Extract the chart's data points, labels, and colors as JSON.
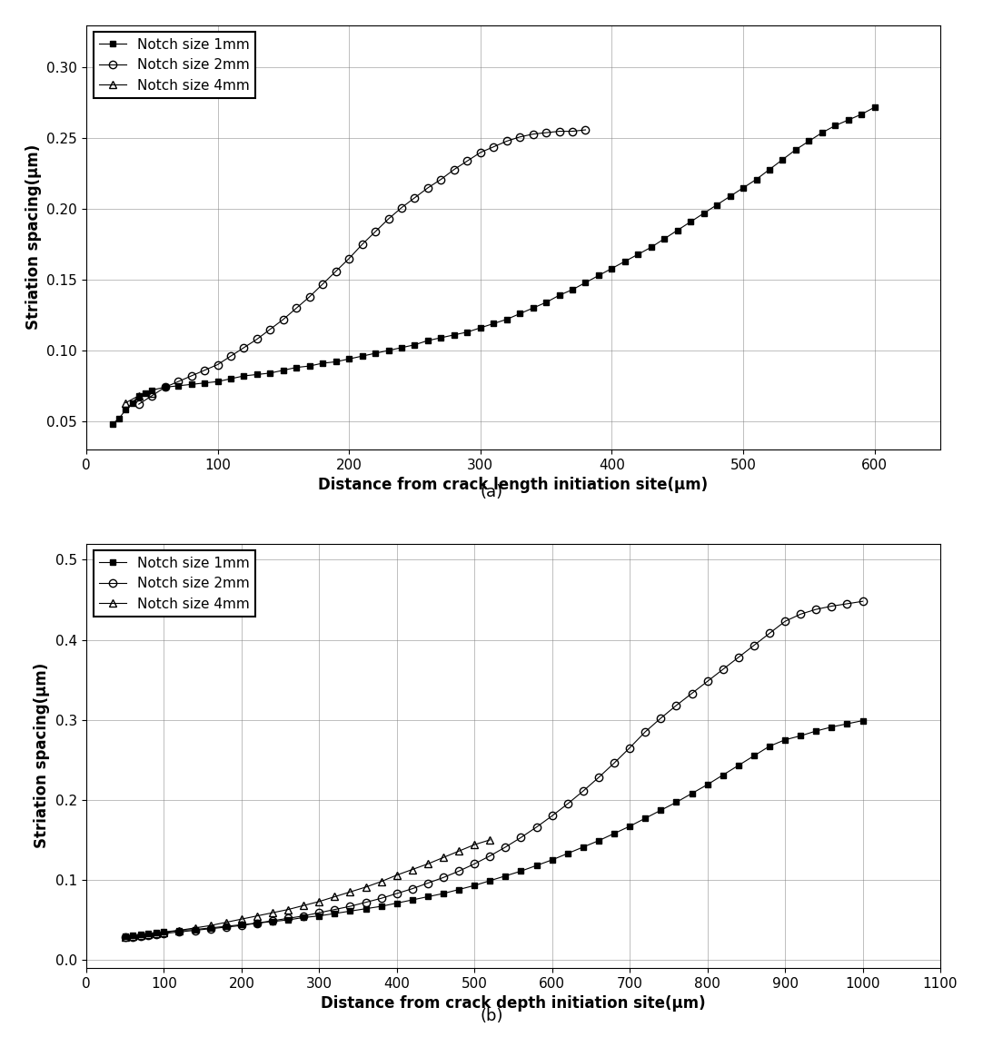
{
  "plot_a": {
    "title": "(a)",
    "xlabel": "Distance from crack length initiation site(μm)",
    "ylabel": "Striation spacing(μm)",
    "xlim": [
      0,
      650
    ],
    "ylim": [
      0.03,
      0.33
    ],
    "yticks": [
      0.05,
      0.1,
      0.15,
      0.2,
      0.25,
      0.3
    ],
    "xticks": [
      0,
      100,
      200,
      300,
      400,
      500,
      600
    ],
    "series": [
      {
        "label": "Notch size 1mm",
        "marker": "s",
        "marker_size": 5,
        "linestyle": "-",
        "color": "black",
        "fillstyle": "full",
        "x": [
          20,
          25,
          30,
          35,
          40,
          45,
          50,
          60,
          70,
          80,
          90,
          100,
          110,
          120,
          130,
          140,
          150,
          160,
          170,
          180,
          190,
          200,
          210,
          220,
          230,
          240,
          250,
          260,
          270,
          280,
          290,
          300,
          310,
          320,
          330,
          340,
          350,
          360,
          370,
          380,
          390,
          400,
          410,
          420,
          430,
          440,
          450,
          460,
          470,
          480,
          490,
          500,
          510,
          520,
          530,
          540,
          550,
          560,
          570,
          580,
          590,
          600
        ],
        "y": [
          0.048,
          0.052,
          0.058,
          0.063,
          0.068,
          0.07,
          0.072,
          0.074,
          0.075,
          0.076,
          0.077,
          0.078,
          0.08,
          0.082,
          0.083,
          0.084,
          0.086,
          0.088,
          0.089,
          0.091,
          0.092,
          0.094,
          0.096,
          0.098,
          0.1,
          0.102,
          0.104,
          0.107,
          0.109,
          0.111,
          0.113,
          0.116,
          0.119,
          0.122,
          0.126,
          0.13,
          0.134,
          0.139,
          0.143,
          0.148,
          0.153,
          0.158,
          0.163,
          0.168,
          0.173,
          0.179,
          0.185,
          0.191,
          0.197,
          0.203,
          0.209,
          0.215,
          0.221,
          0.228,
          0.235,
          0.242,
          0.248,
          0.254,
          0.259,
          0.263,
          0.267,
          0.272
        ]
      },
      {
        "label": "Notch size 2mm",
        "marker": "o",
        "marker_size": 6,
        "linestyle": "-",
        "color": "black",
        "fillstyle": "none",
        "x": [
          40,
          50,
          60,
          70,
          80,
          90,
          100,
          110,
          120,
          130,
          140,
          150,
          160,
          170,
          180,
          190,
          200,
          210,
          220,
          230,
          240,
          250,
          260,
          270,
          280,
          290,
          300,
          310,
          320,
          330,
          340,
          350,
          360,
          370,
          380
        ],
        "y": [
          0.062,
          0.068,
          0.074,
          0.078,
          0.082,
          0.086,
          0.09,
          0.096,
          0.102,
          0.108,
          0.115,
          0.122,
          0.13,
          0.138,
          0.147,
          0.156,
          0.165,
          0.175,
          0.184,
          0.193,
          0.201,
          0.208,
          0.215,
          0.221,
          0.228,
          0.234,
          0.24,
          0.244,
          0.248,
          0.251,
          0.253,
          0.254,
          0.255,
          0.255,
          0.256
        ]
      },
      {
        "label": "Notch size 4mm",
        "marker": "^",
        "marker_size": 6,
        "linestyle": "-",
        "color": "black",
        "fillstyle": "none",
        "x": [
          30,
          40,
          50
        ],
        "y": [
          0.063,
          0.068,
          0.07
        ]
      }
    ]
  },
  "plot_b": {
    "title": "(b)",
    "xlabel": "Distance from crack depth initiation site(μm)",
    "ylabel": "Striation spacing(μm)",
    "xlim": [
      0,
      1100
    ],
    "ylim": [
      -0.01,
      0.52
    ],
    "yticks": [
      0.0,
      0.1,
      0.2,
      0.3,
      0.4,
      0.5
    ],
    "xticks": [
      0,
      100,
      200,
      300,
      400,
      500,
      600,
      700,
      800,
      900,
      1000,
      1100
    ],
    "series": [
      {
        "label": "Notch size 1mm",
        "marker": "s",
        "marker_size": 5,
        "linestyle": "-",
        "color": "black",
        "fillstyle": "full",
        "x": [
          50,
          60,
          70,
          80,
          90,
          100,
          120,
          140,
          160,
          180,
          200,
          220,
          240,
          260,
          280,
          300,
          320,
          340,
          360,
          380,
          400,
          420,
          440,
          460,
          480,
          500,
          520,
          540,
          560,
          580,
          600,
          620,
          640,
          660,
          680,
          700,
          720,
          740,
          760,
          780,
          800,
          820,
          840,
          860,
          880,
          900,
          920,
          940,
          960,
          980,
          1000
        ],
        "y": [
          0.03,
          0.031,
          0.032,
          0.033,
          0.034,
          0.035,
          0.037,
          0.038,
          0.04,
          0.042,
          0.044,
          0.046,
          0.048,
          0.05,
          0.053,
          0.055,
          0.058,
          0.061,
          0.064,
          0.067,
          0.071,
          0.075,
          0.079,
          0.083,
          0.088,
          0.093,
          0.099,
          0.105,
          0.111,
          0.118,
          0.125,
          0.133,
          0.141,
          0.149,
          0.158,
          0.167,
          0.177,
          0.187,
          0.197,
          0.208,
          0.219,
          0.231,
          0.243,
          0.255,
          0.267,
          0.275,
          0.28,
          0.286,
          0.291,
          0.295,
          0.299
        ]
      },
      {
        "label": "Notch size 2mm",
        "marker": "o",
        "marker_size": 6,
        "linestyle": "-",
        "color": "black",
        "fillstyle": "none",
        "x": [
          50,
          60,
          70,
          80,
          90,
          100,
          120,
          140,
          160,
          180,
          200,
          220,
          240,
          260,
          280,
          300,
          320,
          340,
          360,
          380,
          400,
          420,
          440,
          460,
          480,
          500,
          520,
          540,
          560,
          580,
          600,
          620,
          640,
          660,
          680,
          700,
          720,
          740,
          760,
          780,
          800,
          820,
          840,
          860,
          880,
          900,
          920,
          940,
          960,
          980,
          1000
        ],
        "y": [
          0.028,
          0.029,
          0.03,
          0.031,
          0.032,
          0.033,
          0.035,
          0.037,
          0.039,
          0.041,
          0.043,
          0.046,
          0.049,
          0.052,
          0.055,
          0.059,
          0.063,
          0.067,
          0.072,
          0.077,
          0.083,
          0.089,
          0.096,
          0.103,
          0.111,
          0.12,
          0.13,
          0.141,
          0.153,
          0.166,
          0.18,
          0.195,
          0.211,
          0.228,
          0.246,
          0.265,
          0.285,
          0.302,
          0.318,
          0.333,
          0.348,
          0.363,
          0.378,
          0.393,
          0.408,
          0.423,
          0.432,
          0.438,
          0.442,
          0.445,
          0.448
        ]
      },
      {
        "label": "Notch size 4mm",
        "marker": "^",
        "marker_size": 6,
        "linestyle": "-",
        "color": "black",
        "fillstyle": "none",
        "x": [
          50,
          60,
          70,
          80,
          90,
          100,
          120,
          140,
          160,
          180,
          200,
          220,
          240,
          260,
          280,
          300,
          320,
          340,
          360,
          380,
          400,
          420,
          440,
          460,
          480,
          500,
          520
        ],
        "y": [
          0.029,
          0.03,
          0.031,
          0.032,
          0.033,
          0.034,
          0.037,
          0.04,
          0.043,
          0.047,
          0.051,
          0.055,
          0.059,
          0.063,
          0.068,
          0.073,
          0.079,
          0.085,
          0.091,
          0.098,
          0.106,
          0.113,
          0.12,
          0.128,
          0.136,
          0.144,
          0.15
        ]
      }
    ]
  }
}
